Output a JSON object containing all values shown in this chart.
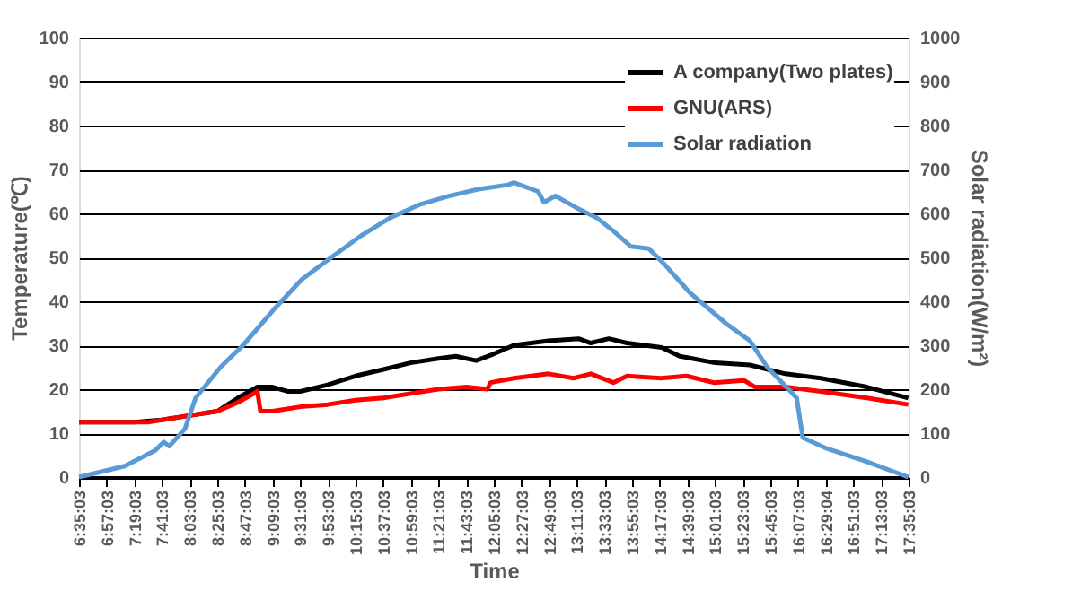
{
  "chart_data": {
    "type": "line",
    "xlabel": "Time",
    "ylabel": "Temperature(℃)",
    "y2label": "Solar radiation(W/m²)",
    "xlim": [
      6.5842,
      17.5842
    ],
    "xticks": [
      {
        "value": 6.5842,
        "label": "6:35:03"
      },
      {
        "value": 6.9508,
        "label": "6:57:03"
      },
      {
        "value": 7.3175,
        "label": "7:19:03"
      },
      {
        "value": 7.6842,
        "label": "7:41:03"
      },
      {
        "value": 8.0508,
        "label": "8:03:03"
      },
      {
        "value": 8.4175,
        "label": "8:25:03"
      },
      {
        "value": 8.7842,
        "label": "8:47:03"
      },
      {
        "value": 9.1508,
        "label": "9:09:03"
      },
      {
        "value": 9.5175,
        "label": "9:31:03"
      },
      {
        "value": 9.8842,
        "label": "9:53:03"
      },
      {
        "value": 10.2508,
        "label": "10:15:03"
      },
      {
        "value": 10.6175,
        "label": "10:37:03"
      },
      {
        "value": 10.9842,
        "label": "10:59:03"
      },
      {
        "value": 11.3508,
        "label": "11:21:03"
      },
      {
        "value": 11.7175,
        "label": "11:43:03"
      },
      {
        "value": 12.0842,
        "label": "12:05:03"
      },
      {
        "value": 12.4508,
        "label": "12:27:03"
      },
      {
        "value": 12.8175,
        "label": "12:49:03"
      },
      {
        "value": 13.1842,
        "label": "13:11:03"
      },
      {
        "value": 13.5508,
        "label": "13:33:03"
      },
      {
        "value": 13.9175,
        "label": "13:55:03"
      },
      {
        "value": 14.2842,
        "label": "14:17:03"
      },
      {
        "value": 14.6508,
        "label": "14:39:03"
      },
      {
        "value": 15.0175,
        "label": "15:01:03"
      },
      {
        "value": 15.3842,
        "label": "15:23:03"
      },
      {
        "value": 15.7508,
        "label": "15:45:03"
      },
      {
        "value": 16.1175,
        "label": "16:07:03"
      },
      {
        "value": 16.4844,
        "label": "16:29:04"
      },
      {
        "value": 16.8508,
        "label": "16:51:03"
      },
      {
        "value": 17.2175,
        "label": "17:13:03"
      },
      {
        "value": 17.5842,
        "label": "17:35:03"
      }
    ],
    "ylim": [
      0,
      100
    ],
    "yticks": [
      0,
      10,
      20,
      30,
      40,
      50,
      60,
      70,
      80,
      90,
      100
    ],
    "y2lim": [
      0,
      1000
    ],
    "y2ticks": [
      0,
      100,
      200,
      300,
      400,
      500,
      600,
      700,
      800,
      900,
      1000
    ],
    "grid": "y",
    "legend": "top right",
    "marker": "none",
    "line_style": "solid",
    "series": [
      {
        "name": "A company(Two plates)",
        "color": "#000000",
        "x": [
          6.5842,
          7.32,
          7.68,
          8.05,
          8.42,
          8.69,
          8.95,
          9.15,
          9.35,
          9.52,
          9.88,
          10.25,
          10.62,
          10.98,
          11.35,
          11.58,
          11.85,
          12.08,
          12.35,
          12.81,
          13.21,
          13.37,
          13.61,
          13.85,
          14.31,
          14.55,
          15.02,
          15.48,
          15.95,
          16.42,
          17.03,
          17.58
        ],
        "values": [
          12.5,
          12.5,
          13,
          14,
          15,
          18,
          20.5,
          20.5,
          19.5,
          19.5,
          21,
          23,
          24.5,
          26,
          27,
          27.5,
          26.5,
          28,
          30,
          31,
          31.5,
          30.5,
          31.5,
          30.5,
          29.5,
          27.5,
          26,
          25.5,
          23.5,
          22.5,
          20.5,
          18
        ]
      },
      {
        "name": "GNU(ARS)",
        "color": "#ff0000",
        "x": [
          6.5842,
          7.5,
          8.05,
          8.42,
          8.69,
          8.95,
          8.99,
          9.15,
          9.52,
          9.88,
          10.25,
          10.62,
          10.98,
          11.35,
          11.72,
          12.0,
          12.04,
          12.35,
          12.81,
          13.14,
          13.37,
          13.67,
          13.85,
          14.3,
          14.64,
          15.0,
          15.4,
          15.55,
          15.95,
          16.42,
          17.03,
          17.58
        ],
        "values": [
          12.5,
          12.5,
          14,
          15,
          17,
          19.5,
          15,
          15,
          16,
          16.5,
          17.5,
          18,
          19,
          20,
          20.5,
          20,
          21.5,
          22.5,
          23.5,
          22.5,
          23.5,
          21.5,
          23,
          22.5,
          23,
          21.5,
          22,
          20.5,
          20.5,
          19.5,
          18,
          16.5
        ]
      },
      {
        "name": "Solar radiation",
        "color": "#5b9bd5",
        "axis": "y2",
        "x": [
          6.5842,
          7.19,
          7.59,
          7.71,
          7.78,
          7.99,
          8.13,
          8.46,
          8.76,
          9.16,
          9.54,
          9.93,
          10.33,
          10.71,
          11.1,
          11.5,
          11.88,
          12.27,
          12.35,
          12.67,
          12.75,
          12.9,
          13.21,
          13.45,
          13.67,
          13.9,
          14.14,
          14.37,
          14.68,
          15.16,
          15.48,
          15.71,
          16.02,
          16.1,
          16.18,
          16.5,
          17.03,
          17.58
        ],
        "values": [
          0,
          25,
          60,
          80,
          70,
          110,
          180,
          250,
          300,
          380,
          450,
          500,
          550,
          590,
          620,
          640,
          655,
          665,
          670,
          650,
          625,
          640,
          610,
          590,
          560,
          525,
          520,
          480,
          420,
          350,
          310,
          250,
          195,
          180,
          90,
          65,
          35,
          0
        ]
      }
    ]
  }
}
